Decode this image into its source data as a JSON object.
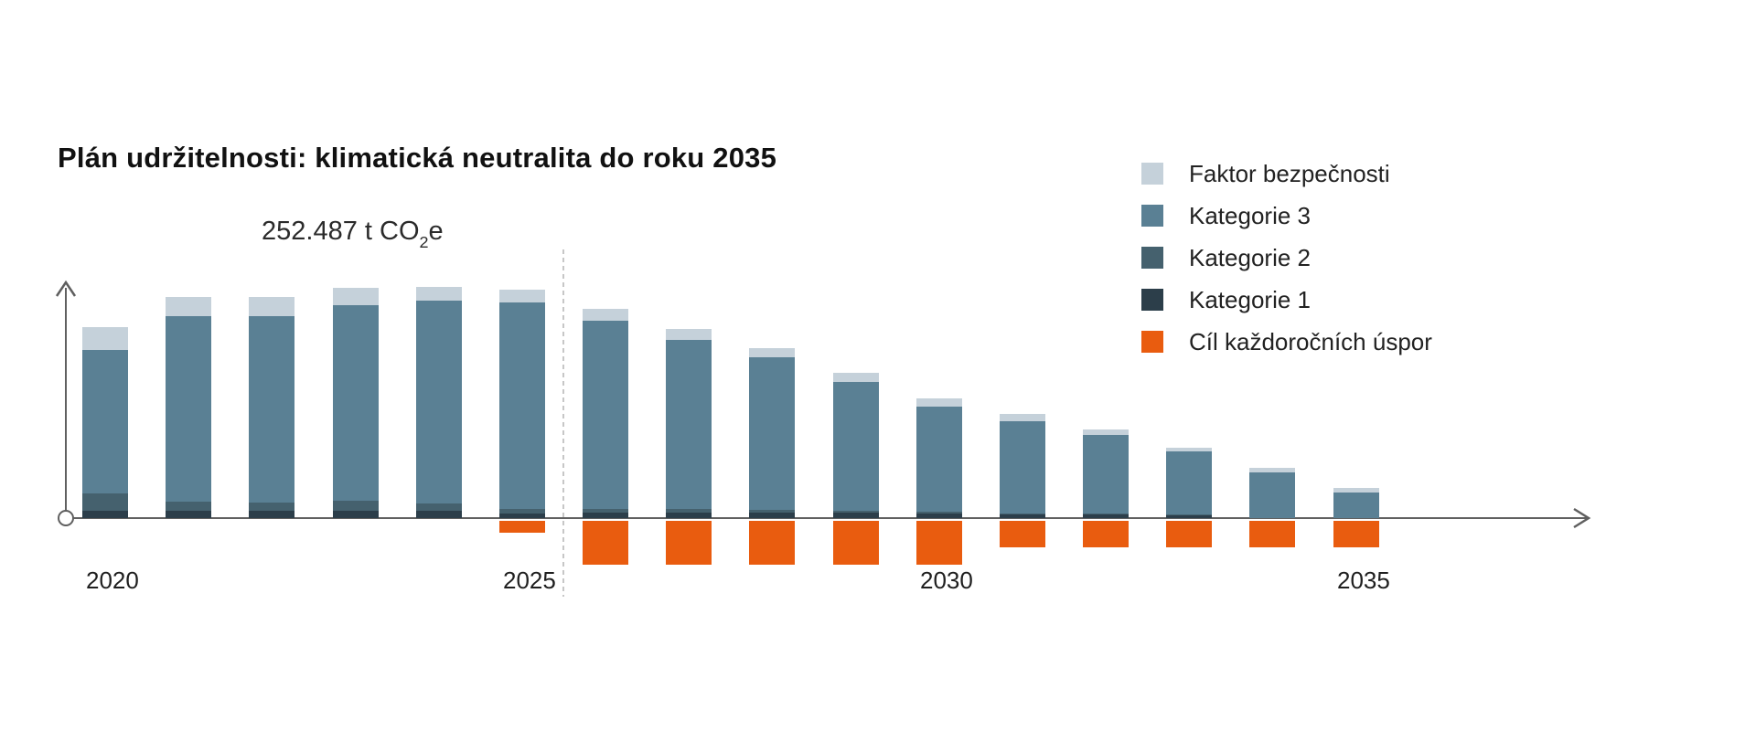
{
  "title": "Plán udržitelnosti: klimatická neutralita do roku 2035",
  "annotation": {
    "value": "252.487",
    "unit_main": " t CO",
    "unit_sub": "2",
    "unit_tail": "e"
  },
  "legend": [
    {
      "key": "safety",
      "label": "Faktor bezpečnosti",
      "color": "#c5d1da"
    },
    {
      "key": "cat3",
      "label": "Kategorie 3",
      "color": "#5a8094"
    },
    {
      "key": "cat2",
      "label": "Kategorie 2",
      "color": "#45616e"
    },
    {
      "key": "cat1",
      "label": "Kategorie 1",
      "color": "#2c3e4a"
    },
    {
      "key": "savings",
      "label": "Cíl každoročních úspor",
      "color": "#e95c0f"
    }
  ],
  "x_axis": {
    "tick_labels": [
      "2020",
      "2025",
      "2030",
      "2035"
    ],
    "tick_positions": [
      0,
      5,
      10,
      15
    ]
  },
  "chart_data": {
    "type": "bar",
    "stacked": true,
    "title": "Plán udržitelnosti: klimatická neutralita do roku 2035",
    "unit": "thousand t CO2e (estimated from bar heights)",
    "peak_label": "252.487 t CO₂e",
    "peak_year": 2024,
    "categories": [
      2020,
      2021,
      2022,
      2023,
      2024,
      2025,
      2026,
      2027,
      2028,
      2029,
      2030,
      2031,
      2032,
      2033,
      2034,
      2035
    ],
    "series": [
      {
        "name": "Faktor bezpečnosti",
        "color": "#c5d1da",
        "values": [
          25,
          21,
          21,
          19,
          15,
          14,
          13,
          12,
          10,
          10,
          9,
          8,
          6,
          4,
          5,
          5
        ]
      },
      {
        "name": "Kategorie 3",
        "color": "#5a8094",
        "values": [
          157,
          203,
          204,
          214,
          222,
          226,
          206,
          185,
          167,
          141,
          115,
          101,
          86,
          69,
          50,
          28
        ]
      },
      {
        "name": "Kategorie 2",
        "color": "#45616e",
        "values": [
          19,
          10,
          9,
          11,
          8,
          5,
          4,
          4,
          3,
          2,
          2,
          1,
          1,
          1,
          0,
          0
        ]
      },
      {
        "name": "Kategorie 1",
        "color": "#2c3e4a",
        "values": [
          8,
          8,
          8,
          8,
          8,
          5,
          6,
          6,
          6,
          6,
          5,
          4,
          4,
          3,
          0,
          0
        ]
      },
      {
        "name": "Cíl každoročních úspor",
        "color": "#e95c0f",
        "values": [
          0,
          0,
          0,
          0,
          0,
          -13,
          -48,
          -48,
          -48,
          -48,
          -48,
          -29,
          -29,
          -29,
          -29,
          -29
        ]
      }
    ],
    "legend_position": "top-right",
    "grid": false,
    "divider_after_category": 2025,
    "baseline_note": "orange savings-target blocks render below the x-axis"
  }
}
